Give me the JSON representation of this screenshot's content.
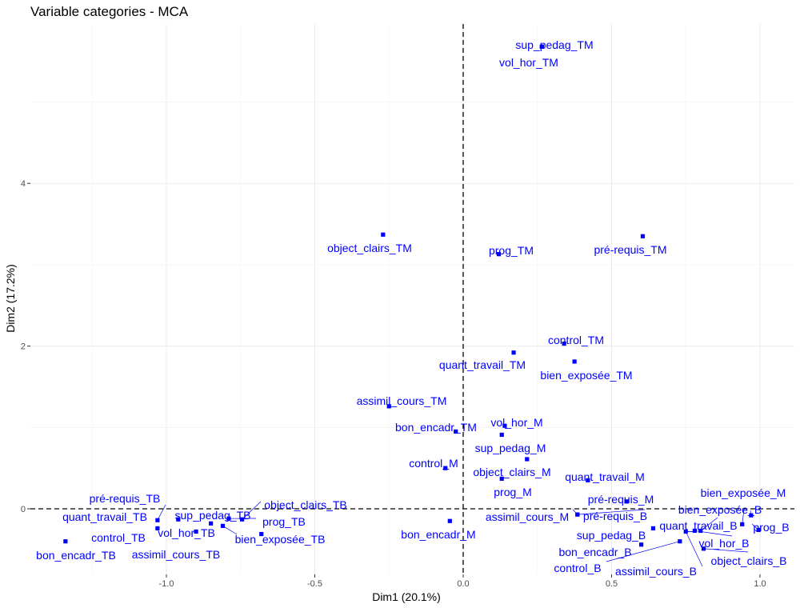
{
  "chart_data": {
    "type": "scatter",
    "title": "Variable categories - MCA",
    "xlabel": "Dim1 (20.1%)",
    "ylabel": "Dim2 (17.2%)",
    "xlim": [
      -1.45,
      1.12
    ],
    "ylim": [
      -0.8,
      5.85
    ],
    "x_ticks": [
      -1.0,
      -0.5,
      0.0,
      0.5,
      1.0
    ],
    "x_tick_labels": [
      "-1.0",
      "-0.5",
      "0.0",
      "0.5",
      "1.0"
    ],
    "y_ticks": [
      0,
      2,
      4
    ],
    "y_tick_labels": [
      "0",
      "2",
      "4"
    ],
    "grid": true,
    "reference_lines": {
      "x": 0,
      "y": 0
    },
    "point_color": "#0000ff",
    "points": [
      {
        "label": "sup_pedag_TM",
        "x": 0.265,
        "y": 5.68
      },
      {
        "label": "vol_hor_TM",
        "x": 0.265,
        "y": 5.68
      },
      {
        "label": "object_clairs_TM",
        "x": -0.27,
        "y": 3.37
      },
      {
        "label": "prog_TM",
        "x": 0.12,
        "y": 3.13
      },
      {
        "label": "pré-requis_TM",
        "x": 0.605,
        "y": 3.35
      },
      {
        "label": "control_TM",
        "x": 0.34,
        "y": 2.03
      },
      {
        "label": "quant_travail_TM",
        "x": 0.17,
        "y": 1.92
      },
      {
        "label": "bien_exposée_TM",
        "x": 0.375,
        "y": 1.81
      },
      {
        "label": "assimil_cours_TM",
        "x": -0.25,
        "y": 1.26
      },
      {
        "label": "bon_encadr_TM",
        "x": -0.025,
        "y": 0.95
      },
      {
        "label": "vol_hor_M",
        "x": 0.14,
        "y": 1.02
      },
      {
        "label": "sup_pedag_M",
        "x": 0.13,
        "y": 0.91
      },
      {
        "label": "control_M",
        "x": -0.06,
        "y": 0.5
      },
      {
        "label": "object_clairs_M",
        "x": 0.215,
        "y": 0.61
      },
      {
        "label": "prog_M",
        "x": 0.13,
        "y": 0.37
      },
      {
        "label": "quant_travail_M",
        "x": 0.42,
        "y": 0.35
      },
      {
        "label": "pré-requis_M",
        "x": 0.55,
        "y": 0.09
      },
      {
        "label": "assimil_cours_M",
        "x": 0.385,
        "y": -0.07
      },
      {
        "label": "pré-requis_B",
        "x": 0.385,
        "y": -0.07
      },
      {
        "label": "bon_encadr_M",
        "x": -0.045,
        "y": -0.15
      },
      {
        "label": "bien_exposée_M",
        "x": 0.97,
        "y": -0.08
      },
      {
        "label": "bien_exposée_B",
        "x": 0.94,
        "y": -0.19
      },
      {
        "label": "prog_B",
        "x": 0.995,
        "y": -0.26
      },
      {
        "label": "quant_travail_B",
        "x": 0.8,
        "y": -0.27
      },
      {
        "label": "vol_hor_B",
        "x": 0.78,
        "y": -0.27
      },
      {
        "label": "sup_pedag_B",
        "x": 0.64,
        "y": -0.24
      },
      {
        "label": "bon_encadr_B",
        "x": 0.6,
        "y": -0.44
      },
      {
        "label": "control_B",
        "x": 0.73,
        "y": -0.4
      },
      {
        "label": "assimil_cours_B",
        "x": 0.75,
        "y": -0.28
      },
      {
        "label": "object_clairs_B",
        "x": 0.81,
        "y": -0.49
      },
      {
        "label": "pré-requis_TB",
        "x": -1.03,
        "y": -0.14
      },
      {
        "label": "quant_travail_TB",
        "x": -1.03,
        "y": -0.24
      },
      {
        "label": "sup_pedag_TB",
        "x": -0.96,
        "y": -0.13
      },
      {
        "label": "vol_hor_TB",
        "x": -0.85,
        "y": -0.18
      },
      {
        "label": "control_TB",
        "x": -0.9,
        "y": -0.28
      },
      {
        "label": "object_clairs_TB",
        "x": -0.745,
        "y": -0.13
      },
      {
        "label": "prog_TB",
        "x": -0.79,
        "y": -0.12
      },
      {
        "label": "bien_exposée_TB",
        "x": -0.81,
        "y": -0.21
      },
      {
        "label": "assimil_cours_TB",
        "x": -0.68,
        "y": -0.31
      },
      {
        "label": "bon_encadr_TB",
        "x": -1.34,
        "y": -0.4
      }
    ]
  }
}
